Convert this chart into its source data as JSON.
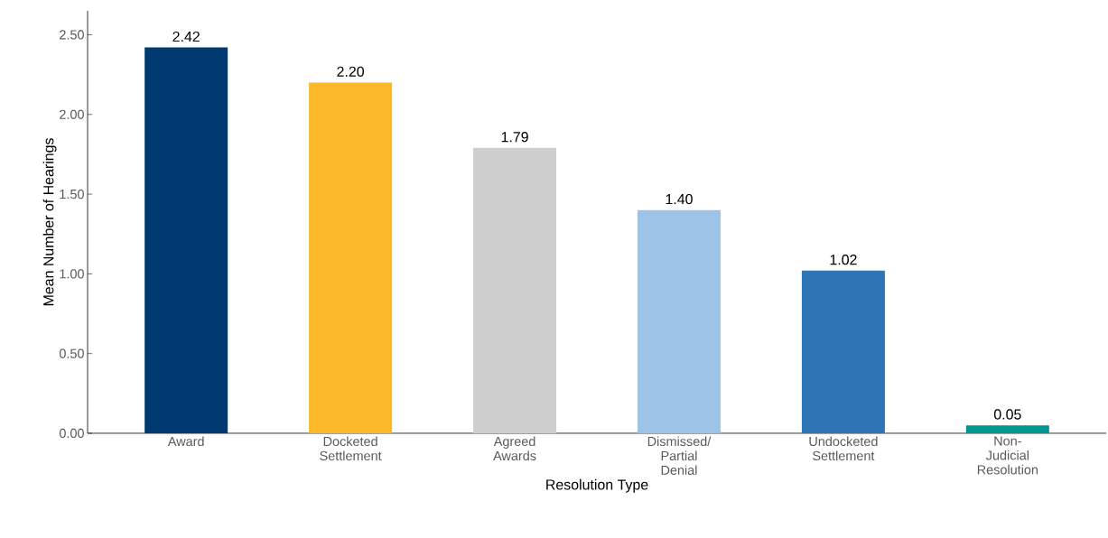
{
  "chart_data": {
    "type": "bar",
    "xlabel": "Resolution Type",
    "ylabel": "Mean Number of Hearings",
    "categories": [
      "Award",
      "Docketed Settlement",
      "Agreed Awards",
      "Dismissed/ Partial Denial",
      "Undocketed Settlement",
      "Non-Judicial Resolution"
    ],
    "values": [
      2.42,
      2.2,
      1.79,
      1.4,
      1.02,
      0.05
    ],
    "value_labels": [
      "2.42",
      "2.20",
      "1.79",
      "1.40",
      "1.02",
      "0.05"
    ],
    "colors": [
      "#003a70",
      "#fbb829",
      "#d0cfd0",
      "#9dc3e6",
      "#2e75b6",
      "#00958f"
    ],
    "ylim": [
      0,
      2.65
    ],
    "yticks": [
      {
        "value": 0,
        "label": "0.00"
      },
      {
        "value": 0.5,
        "label": "0.50"
      },
      {
        "value": 1,
        "label": "1.00"
      },
      {
        "value": 1.5,
        "label": "1.50"
      },
      {
        "value": 2,
        "label": "2.00"
      },
      {
        "value": 2.5,
        "label": "2.50"
      }
    ],
    "grid": false
  }
}
